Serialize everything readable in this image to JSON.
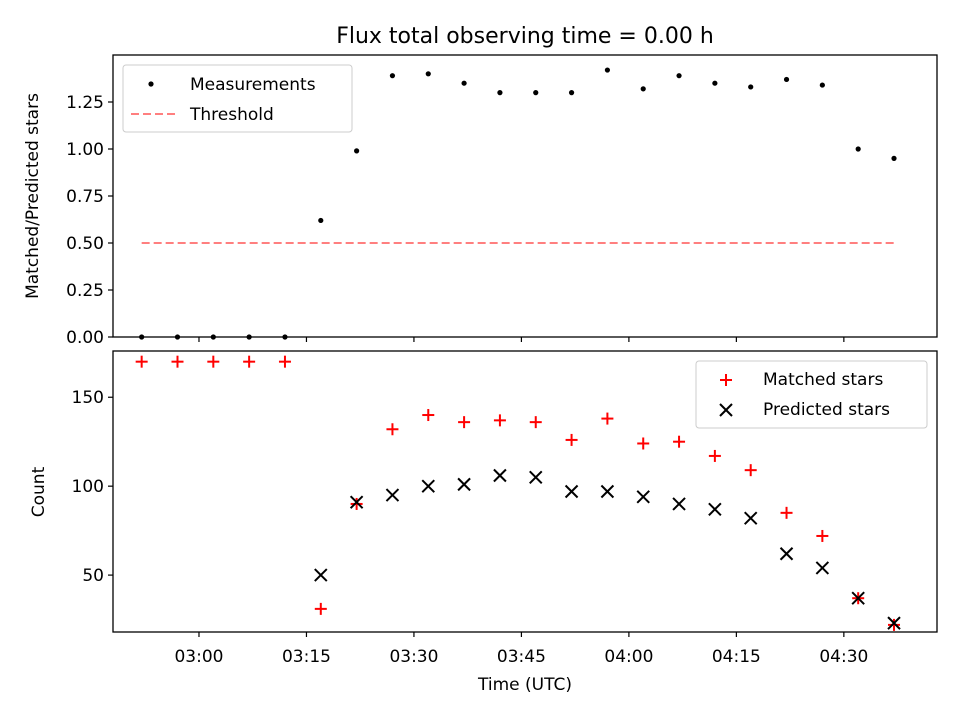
{
  "chart_data": [
    {
      "type": "scatter",
      "title": "Flux total observing time = 0.00 h",
      "xlabel": "",
      "ylabel": "Matched/Predicted stars",
      "ylim": [
        0,
        1.5
      ],
      "yticks": [
        "0.00",
        "0.25",
        "0.50",
        "0.75",
        "1.00",
        "1.25"
      ],
      "ytick_values": [
        0,
        0.25,
        0.5,
        0.75,
        1.0,
        1.25
      ],
      "legend_position": "top-left",
      "series": [
        {
          "name": "Measurements",
          "marker": "dot",
          "color": "#000000",
          "x": [
            "02:52",
            "02:57",
            "03:02",
            "03:07",
            "03:12",
            "03:17",
            "03:22",
            "03:27",
            "03:32",
            "03:37",
            "03:42",
            "03:47",
            "03:52",
            "03:57",
            "04:02",
            "04:07",
            "04:12",
            "04:17",
            "04:22",
            "04:27",
            "04:32",
            "04:37"
          ],
          "y": [
            0.0,
            0.0,
            0.0,
            0.0,
            0.0,
            0.62,
            0.99,
            1.39,
            1.4,
            1.35,
            1.3,
            1.3,
            1.3,
            1.42,
            1.32,
            1.39,
            1.35,
            1.33,
            1.37,
            1.34,
            1.0,
            0.95
          ]
        },
        {
          "name": "Threshold",
          "marker": "dashed-line",
          "color": "#ff7f7f",
          "x": [
            "02:52",
            "04:37"
          ],
          "y": [
            0.5,
            0.5
          ]
        }
      ]
    },
    {
      "type": "scatter",
      "xlabel": "Time (UTC)",
      "ylabel": "Count",
      "ylim": [
        18,
        176
      ],
      "xlim": [
        "02:48",
        "04:43"
      ],
      "xticks": [
        "03:00",
        "03:15",
        "03:30",
        "03:45",
        "04:00",
        "04:15",
        "04:30"
      ],
      "yticks": [
        "50",
        "100",
        "150"
      ],
      "ytick_values": [
        50,
        100,
        150
      ],
      "legend_position": "top-right",
      "series": [
        {
          "name": "Matched stars",
          "marker": "plus",
          "color": "#ff0000",
          "x": [
            "02:52",
            "02:57",
            "03:02",
            "03:07",
            "03:12",
            "03:17",
            "03:22",
            "03:27",
            "03:32",
            "03:37",
            "03:42",
            "03:47",
            "03:52",
            "03:57",
            "04:02",
            "04:07",
            "04:12",
            "04:17",
            "04:22",
            "04:27",
            "04:32",
            "04:37"
          ],
          "y": [
            170,
            170,
            170,
            170,
            170,
            31,
            90,
            132,
            140,
            136,
            137,
            136,
            126,
            138,
            124,
            125,
            117,
            109,
            85,
            72,
            37,
            22
          ]
        },
        {
          "name": "Predicted stars",
          "marker": "x",
          "color": "#000000",
          "x": [
            "03:17",
            "03:22",
            "03:27",
            "03:32",
            "03:37",
            "03:42",
            "03:47",
            "03:52",
            "03:57",
            "04:02",
            "04:07",
            "04:12",
            "04:17",
            "04:22",
            "04:27",
            "04:32",
            "04:37"
          ],
          "y": [
            50,
            91,
            95,
            100,
            101,
            106,
            105,
            97,
            97,
            94,
            90,
            87,
            82,
            62,
            54,
            37,
            23
          ]
        }
      ]
    }
  ]
}
